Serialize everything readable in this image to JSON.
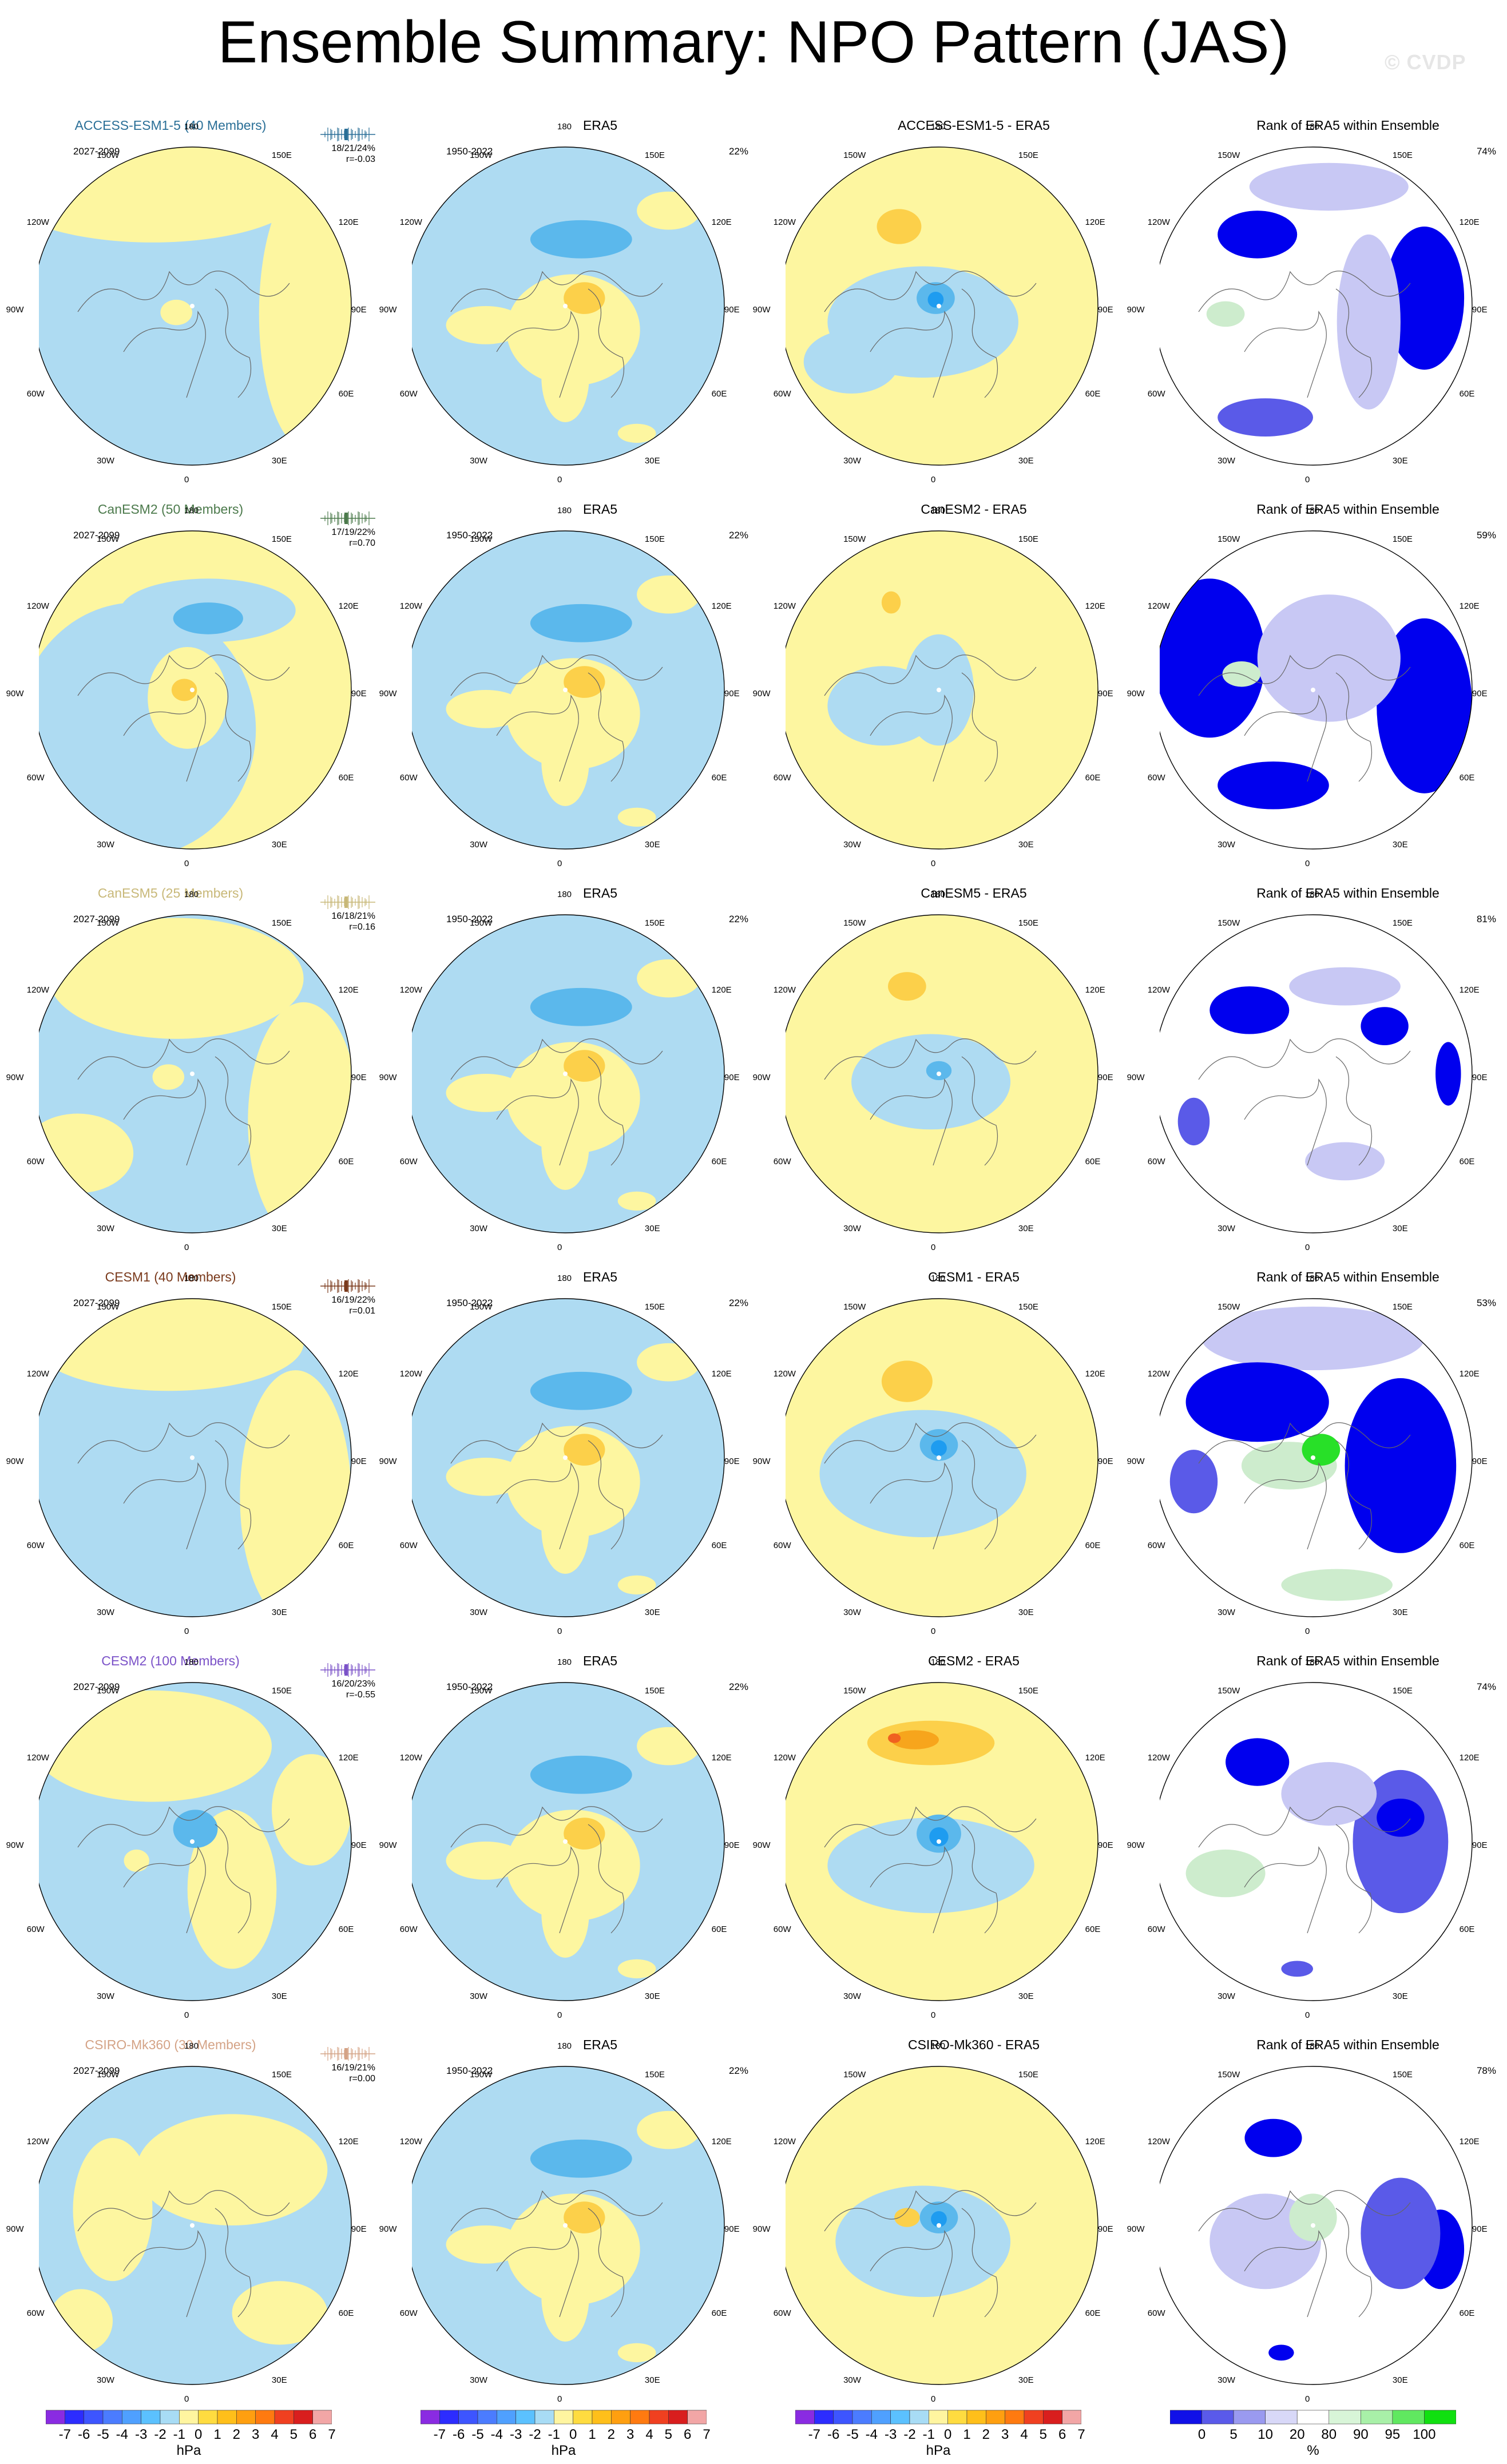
{
  "page": {
    "title": "Ensemble Summary: NPO Pattern (JAS)",
    "watermark": "© CVDP"
  },
  "map_labels": {
    "top": "180",
    "bottom": "0",
    "upper_left": "150W",
    "upper_right": "150E",
    "mid_left_upper": "120W",
    "mid_right_upper": "120E",
    "left": "90W",
    "right": "90E",
    "mid_left_lower": "60W",
    "mid_right_lower": "60E",
    "lower_left": "30W",
    "lower_right": "30E"
  },
  "chart_data": [
    {
      "type": "heatmap",
      "rows": [
        {
          "model": {
            "title": "ACCESS-ESM1-5 (40 Members)",
            "color": "#2a6f97",
            "years": "2027-2099",
            "stats": "18/21/24%",
            "corr": "r=-0.03"
          },
          "obs": {
            "title": "ERA5",
            "years": "1950-2022",
            "pct": "22%"
          },
          "diff": {
            "title": "ACCESS-ESM1-5 - ERA5"
          },
          "rank": {
            "title": "Rank of ERA5 within Ensemble",
            "pct": "74%"
          }
        },
        {
          "model": {
            "title": "CanESM2 (50 Members)",
            "color": "#4c7a4c",
            "years": "2027-2099",
            "stats": "17/19/22%",
            "corr": "r=0.70"
          },
          "obs": {
            "title": "ERA5",
            "years": "1950-2022",
            "pct": "22%"
          },
          "diff": {
            "title": "CanESM2 - ERA5"
          },
          "rank": {
            "title": "Rank of ERA5 within Ensemble",
            "pct": "59%"
          }
        },
        {
          "model": {
            "title": "CanESM5 (25 Members)",
            "color": "#c8b878",
            "years": "2027-2099",
            "stats": "16/18/21%",
            "corr": "r=0.16"
          },
          "obs": {
            "title": "ERA5",
            "years": "1950-2022",
            "pct": "22%"
          },
          "diff": {
            "title": "CanESM5 - ERA5"
          },
          "rank": {
            "title": "Rank of ERA5 within Ensemble",
            "pct": "81%"
          }
        },
        {
          "model": {
            "title": "CESM1 (40 Members)",
            "color": "#7a3a1c",
            "years": "2027-2099",
            "stats": "16/19/22%",
            "corr": "r=0.01"
          },
          "obs": {
            "title": "ERA5",
            "years": "1950-2022",
            "pct": "22%"
          },
          "diff": {
            "title": "CESM1 - ERA5"
          },
          "rank": {
            "title": "Rank of ERA5 within Ensemble",
            "pct": "53%"
          }
        },
        {
          "model": {
            "title": "CESM2 (100 Members)",
            "color": "#7b52c8",
            "years": "2027-2099",
            "stats": "16/20/23%",
            "corr": "r=-0.55"
          },
          "obs": {
            "title": "ERA5",
            "years": "1950-2022",
            "pct": "22%"
          },
          "diff": {
            "title": "CESM2 - ERA5"
          },
          "rank": {
            "title": "Rank of ERA5 within Ensemble",
            "pct": "74%"
          }
        },
        {
          "model": {
            "title": "CSIRO-Mk360 (30 Members)",
            "color": "#d4a386",
            "years": "2027-2099",
            "stats": "16/19/21%",
            "corr": "r=0.00"
          },
          "obs": {
            "title": "ERA5",
            "years": "1950-2022",
            "pct": "22%"
          },
          "diff": {
            "title": "CSIRO-Mk360 - ERA5"
          },
          "rank": {
            "title": "Rank of ERA5 within Ensemble",
            "pct": "78%"
          }
        }
      ],
      "colorbars": [
        {
          "units": "hPa",
          "labels": [
            "-7",
            "-6",
            "-5",
            "-4",
            "-3",
            "-2",
            "-1",
            "0",
            "1",
            "2",
            "3",
            "4",
            "5",
            "6",
            "7"
          ],
          "colors": [
            "#8a2be2",
            "#2c2cff",
            "#3d55ff",
            "#4b7cff",
            "#4fa0ff",
            "#5bc1ff",
            "#a8dcf5",
            "#fff5a0",
            "#ffdc40",
            "#ffbf1a",
            "#ff9f10",
            "#ff7a10",
            "#f04020",
            "#d91e1e",
            "#f2a6a6"
          ]
        },
        {
          "units": "hPa",
          "labels": [
            "-7",
            "-6",
            "-5",
            "-4",
            "-3",
            "-2",
            "-1",
            "0",
            "1",
            "2",
            "3",
            "4",
            "5",
            "6",
            "7"
          ],
          "colors": [
            "#8a2be2",
            "#2c2cff",
            "#3d55ff",
            "#4b7cff",
            "#4fa0ff",
            "#5bc1ff",
            "#a8dcf5",
            "#fff5a0",
            "#ffdc40",
            "#ffbf1a",
            "#ff9f10",
            "#ff7a10",
            "#f04020",
            "#d91e1e",
            "#f2a6a6"
          ]
        },
        {
          "units": "hPa",
          "labels": [
            "-7",
            "-6",
            "-5",
            "-4",
            "-3",
            "-2",
            "-1",
            "0",
            "1",
            "2",
            "3",
            "4",
            "5",
            "6",
            "7"
          ],
          "colors": [
            "#8a2be2",
            "#2c2cff",
            "#3d55ff",
            "#4b7cff",
            "#4fa0ff",
            "#5bc1ff",
            "#a8dcf5",
            "#fff5a0",
            "#ffdc40",
            "#ffbf1a",
            "#ff9f10",
            "#ff7a10",
            "#f04020",
            "#d91e1e",
            "#f2a6a6"
          ]
        },
        {
          "units": "%",
          "labels": [
            "0",
            "5",
            "10",
            "20",
            "80",
            "90",
            "95",
            "100"
          ],
          "colors": [
            "#1010e8",
            "#5a5aea",
            "#9a9af0",
            "#d8d8f8",
            "#ffffff",
            "#d8f5d8",
            "#a8f0a8",
            "#60e860",
            "#10e010"
          ]
        }
      ]
    }
  ]
}
